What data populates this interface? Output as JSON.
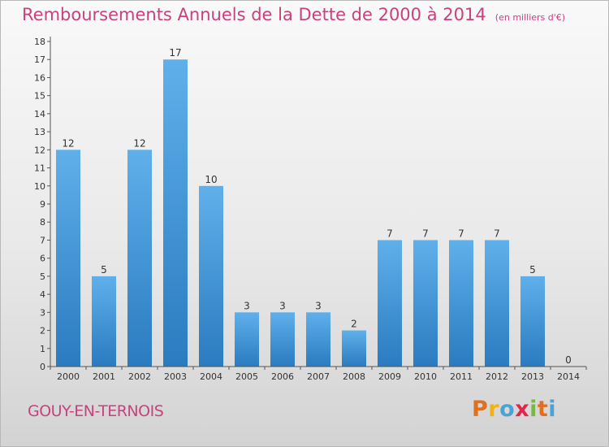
{
  "header": {
    "title": "Remboursements Annuels de la Dette de 2000 à 2014",
    "subtitle": "(en milliers d'€)"
  },
  "footer": {
    "commune": "GOUY-EN-TERNOIS",
    "logo": {
      "letters": [
        "P",
        "r",
        "o",
        "x",
        "i",
        "t",
        "i"
      ],
      "colors": [
        "#e0701e",
        "#f2b312",
        "#4aa3d8",
        "#e2254b",
        "#7ab648",
        "#e0701e",
        "#4aa3d8"
      ]
    }
  },
  "colors": {
    "bar_light": "#5fb0ea",
    "bar_dark": "#2a7bc0",
    "axis": "#555555",
    "text": "#333333",
    "accent": "#c8427d"
  },
  "chart_data": {
    "type": "bar",
    "categories": [
      "2000",
      "2001",
      "2002",
      "2003",
      "2004",
      "2005",
      "2006",
      "2007",
      "2008",
      "2009",
      "2010",
      "2011",
      "2012",
      "2013",
      "2014"
    ],
    "values": [
      12,
      5,
      12,
      17,
      10,
      3,
      3,
      3,
      2,
      7,
      7,
      7,
      7,
      5,
      0
    ],
    "data_labels": [
      "12",
      "5",
      "12",
      "17",
      "10",
      "3",
      "3",
      "3",
      "2",
      "7",
      "7",
      "7",
      "7",
      "5",
      "0"
    ],
    "y_ticks": [
      0,
      1,
      2,
      3,
      4,
      5,
      6,
      7,
      8,
      9,
      10,
      11,
      12,
      13,
      14,
      15,
      16,
      17,
      18
    ],
    "ylim": [
      0,
      18
    ],
    "grid": false,
    "legend": "none"
  }
}
